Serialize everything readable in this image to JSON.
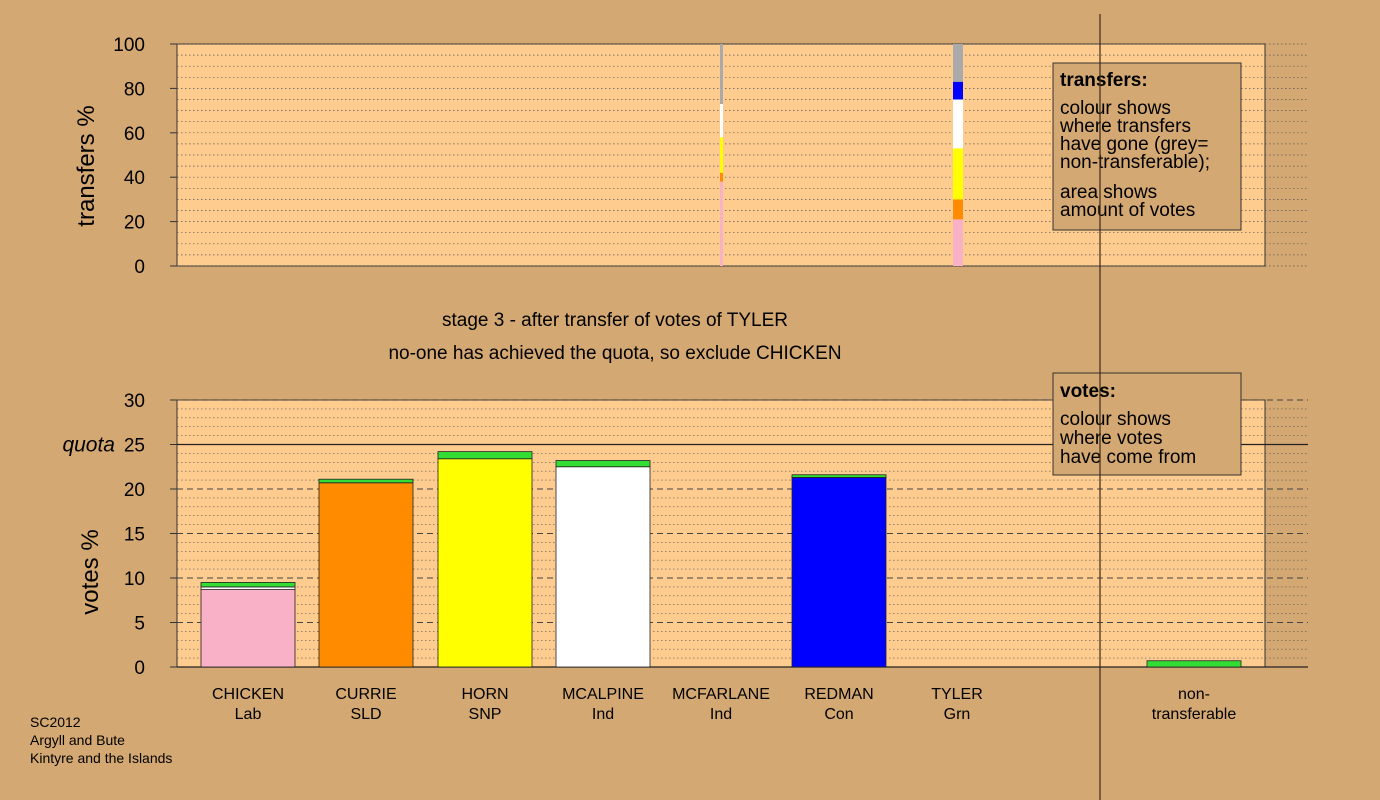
{
  "chart_data": [
    {
      "type": "bar",
      "stacked": true,
      "panel": "transfers",
      "ylabel": "transfers %",
      "ylim": [
        0,
        100
      ],
      "yticks": [
        0,
        20,
        40,
        60,
        80,
        100
      ],
      "grid": true,
      "legend": {
        "title": "transfers:",
        "lines": [
          "colour shows",
          "where transfers",
          "have gone (grey=",
          "non-transferable);",
          "area shows",
          "amount of votes"
        ],
        "placement": "top-right"
      },
      "bars": [
        {
          "position": "between MCFARLANE and REDMAN",
          "thin": true,
          "segments": [
            {
              "from": "CHICKEN",
              "color": "#f9b1c7",
              "value": 38
            },
            {
              "from": "CURRIE",
              "color": "#ff8c00",
              "value": 4
            },
            {
              "from": "HORN",
              "color": "#ffff00",
              "value": 16
            },
            {
              "from": "MCALPINE",
              "color": "#ffffff",
              "value": 15
            },
            {
              "from": "non-transferable",
              "color": "#aaaaaa",
              "value": 27
            }
          ]
        },
        {
          "position": "TYLER",
          "thin": false,
          "segments": [
            {
              "from": "CHICKEN",
              "color": "#f9b1c7",
              "value": 21
            },
            {
              "from": "CURRIE",
              "color": "#ff8c00",
              "value": 9
            },
            {
              "from": "HORN",
              "color": "#ffff00",
              "value": 23
            },
            {
              "from": "MCALPINE",
              "color": "#ffffff",
              "value": 22
            },
            {
              "from": "REDMAN",
              "color": "#0000ff",
              "value": 8
            },
            {
              "from": "non-transferable",
              "color": "#aaaaaa",
              "value": 17
            }
          ]
        }
      ]
    },
    {
      "type": "bar",
      "stacked": true,
      "panel": "votes",
      "title": "stage 3 - after transfer of votes of TYLER",
      "subtitle": "no-one has achieved the quota, so exclude CHICKEN",
      "ylabel": "votes %",
      "ylim": [
        0,
        30
      ],
      "yticks": [
        0,
        5,
        10,
        15,
        20,
        25,
        30
      ],
      "quota": 25,
      "quota_label": "quota",
      "grid": true,
      "legend": {
        "title": "votes:",
        "lines": [
          "colour shows",
          "where votes",
          "have come from"
        ],
        "placement": "top-right"
      },
      "categories": [
        {
          "name": "CHICKEN",
          "party": "Lab"
        },
        {
          "name": "CURRIE",
          "party": "SLD"
        },
        {
          "name": "HORN",
          "party": "SNP"
        },
        {
          "name": "MCALPINE",
          "party": "Ind"
        },
        {
          "name": "MCFARLANE",
          "party": "Ind"
        },
        {
          "name": "REDMAN",
          "party": "Con"
        },
        {
          "name": "TYLER",
          "party": "Grn"
        },
        {
          "name": "non-\ntransferable",
          "party": ""
        }
      ],
      "bars": [
        {
          "segments": [
            {
              "value": 8.7,
              "color": "#f9b1c7"
            },
            {
              "value": 0.3,
              "color": "#ffffff"
            },
            {
              "value": 0.5,
              "color": "#33dd33"
            }
          ]
        },
        {
          "segments": [
            {
              "value": 20.7,
              "color": "#ff8c00"
            },
            {
              "value": 0.4,
              "color": "#33dd33"
            }
          ]
        },
        {
          "segments": [
            {
              "value": 23.4,
              "color": "#ffff00"
            },
            {
              "value": 0.8,
              "color": "#33dd33"
            }
          ]
        },
        {
          "segments": [
            {
              "value": 22.5,
              "color": "#ffffff"
            },
            {
              "value": 0.7,
              "color": "#33dd33"
            }
          ]
        },
        {
          "segments": []
        },
        {
          "segments": [
            {
              "value": 21.3,
              "color": "#0000ff"
            },
            {
              "value": 0.3,
              "color": "#33dd33"
            }
          ]
        },
        {
          "segments": []
        },
        {
          "segments": [
            {
              "value": 0.7,
              "color": "#33dd33"
            }
          ]
        }
      ]
    }
  ],
  "colors": {
    "background": "#d4a872",
    "plot_background": "#ffcc8f",
    "legend_background": "#d4a872",
    "grid": "#555555"
  },
  "footer": {
    "line1": "SC2012",
    "line2": "Argyll and Bute",
    "line3": "Kintyre and the Islands"
  }
}
